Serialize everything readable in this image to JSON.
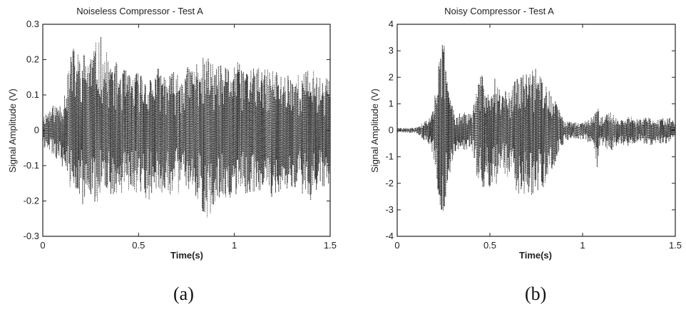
{
  "figure": {
    "panels": [
      {
        "id": "a",
        "caption": "(a)",
        "title": "Noiseless Compressor - Test A",
        "xlabel": "Time(s)",
        "ylabel": "Signal Amplitude (V)",
        "xticks": [
          "0",
          "0.5",
          "1",
          "1.5"
        ],
        "yticks": [
          "0.3",
          "0.2",
          "0.1",
          "0",
          "-0.1",
          "-0.2",
          "-0.3"
        ]
      },
      {
        "id": "b",
        "caption": "(b)",
        "title": "Noisy Compressor - Test A",
        "xlabel": "Time(s)",
        "ylabel": "Signal Amplitude (V)",
        "xticks": [
          "0",
          "0.5",
          "1",
          "1.5"
        ],
        "yticks": [
          "4",
          "3",
          "2",
          "1",
          "0",
          "-1",
          "-2",
          "-3",
          "-4"
        ]
      }
    ]
  },
  "chart_data": [
    {
      "type": "line",
      "title": "Noiseless Compressor - Test A",
      "xlabel": "Time(s)",
      "ylabel": "Signal Amplitude (V)",
      "xlim": [
        0,
        1.5
      ],
      "ylim": [
        -0.3,
        0.3
      ],
      "grid": false,
      "line_color": "#222222",
      "line_style": "dotted",
      "series": [
        {
          "x": [
            0,
            0.05,
            0.1,
            0.13,
            0.15,
            0.2,
            0.25,
            0.3,
            0.35,
            0.4,
            0.45,
            0.5,
            0.55,
            0.6,
            0.65,
            0.7,
            0.75,
            0.8,
            0.86,
            0.9,
            0.95,
            1.0,
            1.05,
            1.1,
            1.15,
            1.2,
            1.25,
            1.3,
            1.35,
            1.4,
            1.45,
            1.5
          ],
          "ymax": [
            0.04,
            0.07,
            0.08,
            0.16,
            0.24,
            0.22,
            0.23,
            0.27,
            0.2,
            0.19,
            0.16,
            0.17,
            0.15,
            0.18,
            0.16,
            0.17,
            0.18,
            0.2,
            0.21,
            0.19,
            0.18,
            0.2,
            0.18,
            0.19,
            0.17,
            0.18,
            0.16,
            0.17,
            0.16,
            0.18,
            0.15,
            0.17
          ],
          "ymin": [
            -0.05,
            -0.07,
            -0.1,
            -0.14,
            -0.18,
            -0.22,
            -0.21,
            -0.2,
            -0.19,
            -0.18,
            -0.17,
            -0.18,
            -0.2,
            -0.17,
            -0.19,
            -0.18,
            -0.17,
            -0.19,
            -0.26,
            -0.2,
            -0.19,
            -0.2,
            -0.18,
            -0.19,
            -0.17,
            -0.2,
            -0.18,
            -0.17,
            -0.18,
            -0.2,
            -0.17,
            -0.16
          ]
        }
      ]
    },
    {
      "type": "line",
      "title": "Noisy Compressor - Test A",
      "xlabel": "Time(s)",
      "ylabel": "Signal Amplitude (V)",
      "xlim": [
        0,
        1.5
      ],
      "ylim": [
        -4,
        4
      ],
      "grid": false,
      "line_color": "#222222",
      "line_style": "dotted",
      "series": [
        {
          "x": [
            0,
            0.1,
            0.18,
            0.22,
            0.25,
            0.28,
            0.32,
            0.36,
            0.4,
            0.45,
            0.48,
            0.52,
            0.56,
            0.6,
            0.65,
            0.7,
            0.75,
            0.8,
            0.85,
            0.9,
            0.95,
            1.0,
            1.05,
            1.08,
            1.1,
            1.15,
            1.2,
            1.25,
            1.3,
            1.35,
            1.4,
            1.45,
            1.5
          ],
          "ymax": [
            0.08,
            0.1,
            0.5,
            2.4,
            3.6,
            1.5,
            0.6,
            0.7,
            0.6,
            2.2,
            2.0,
            2.2,
            1.4,
            1.6,
            2.0,
            2.3,
            2.4,
            1.8,
            1.2,
            0.4,
            0.3,
            0.35,
            0.5,
            0.9,
            0.5,
            0.7,
            0.4,
            0.6,
            0.4,
            0.5,
            0.4,
            0.6,
            0.3
          ],
          "ymin": [
            -0.08,
            -0.1,
            -0.6,
            -2.4,
            -3.9,
            -1.8,
            -0.7,
            -0.8,
            -0.6,
            -2.6,
            -2.2,
            -2.4,
            -1.5,
            -1.8,
            -2.4,
            -2.7,
            -2.3,
            -2.2,
            -1.3,
            -0.5,
            -0.3,
            -0.4,
            -0.5,
            -1.5,
            -0.6,
            -0.8,
            -0.5,
            -0.7,
            -0.4,
            -0.6,
            -0.5,
            -0.5,
            -0.3
          ]
        }
      ]
    }
  ]
}
